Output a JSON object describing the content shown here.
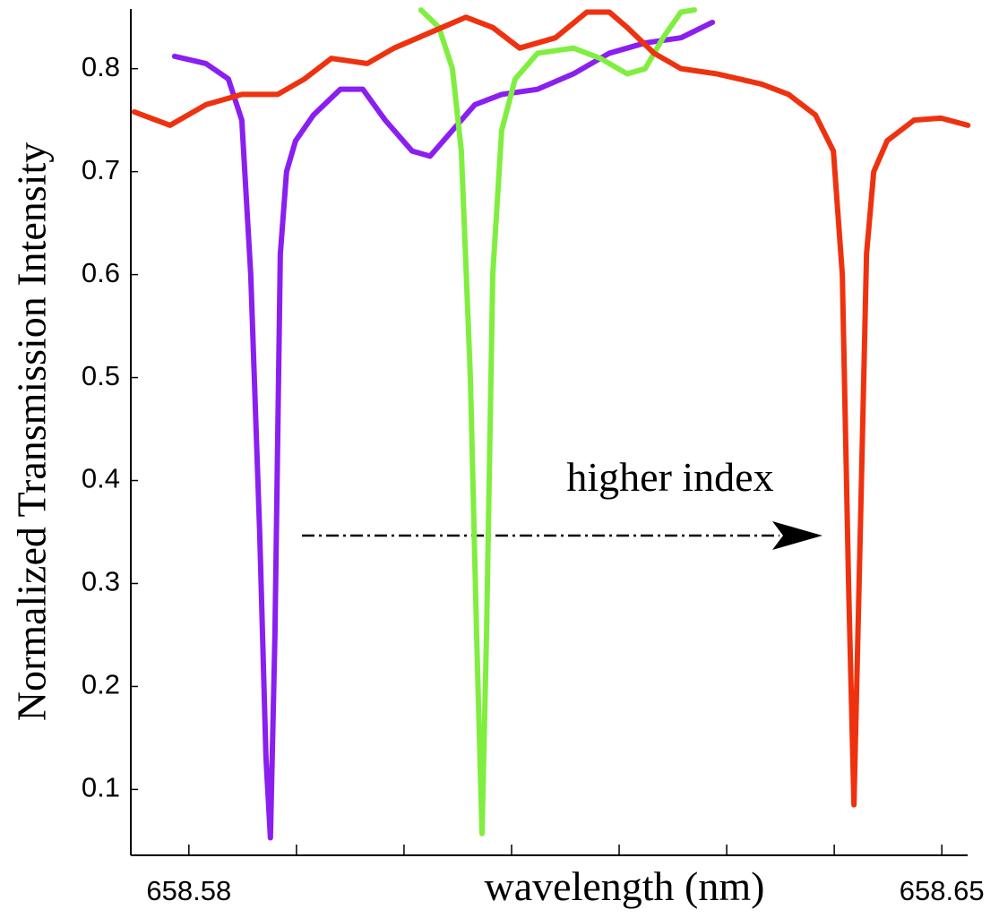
{
  "chart_data": {
    "type": "line",
    "ylabel": "Normalized Transmission Intensity",
    "xlabel": "wavelength (nm)",
    "annotation": "higher index",
    "xlim": [
      658.5746,
      658.6524
    ],
    "ylim": [
      0.036,
      0.858
    ],
    "xticks": [
      658.58,
      658.65
    ],
    "xminor_ticks": [
      658.59,
      658.6,
      658.61,
      658.62,
      658.63,
      658.64
    ],
    "yticks": [
      0.1,
      0.2,
      0.3,
      0.4,
      0.5,
      0.6,
      0.7,
      0.8
    ],
    "series": [
      {
        "color": "#8a1ff0",
        "x": [
          658.57867,
          658.58158,
          658.58367,
          658.58492,
          658.58575,
          658.58658,
          658.58717,
          658.58758,
          658.588,
          658.5885,
          658.58908,
          658.58992,
          658.59158,
          658.59408,
          658.59617,
          658.59825,
          658.60075,
          658.60242,
          658.60408,
          658.60658,
          658.60908,
          658.61242,
          658.61575,
          658.61908,
          658.62242,
          658.62575,
          658.62867
        ],
        "values": [
          0.812,
          0.805,
          0.79,
          0.75,
          0.6,
          0.35,
          0.13,
          0.053,
          0.25,
          0.62,
          0.7,
          0.73,
          0.755,
          0.78,
          0.78,
          0.75,
          0.72,
          0.715,
          0.735,
          0.765,
          0.775,
          0.78,
          0.795,
          0.815,
          0.825,
          0.83,
          0.845
        ]
      },
      {
        "color": "#80ee40",
        "x": [
          658.60158,
          658.60325,
          658.6045,
          658.60533,
          658.60617,
          658.60675,
          658.60725,
          658.60767,
          658.60825,
          658.60908,
          658.61033,
          658.61242,
          658.61575,
          658.61825,
          658.62075,
          658.62242,
          658.62408,
          658.62575,
          658.627
        ],
        "values": [
          0.857,
          0.84,
          0.8,
          0.72,
          0.5,
          0.25,
          0.057,
          0.25,
          0.6,
          0.74,
          0.79,
          0.815,
          0.82,
          0.81,
          0.795,
          0.8,
          0.83,
          0.855,
          0.857
        ]
      },
      {
        "color": "#ee3210",
        "x": [
          658.57492,
          658.57825,
          658.58158,
          658.58492,
          658.58825,
          658.59075,
          658.59325,
          658.59658,
          658.59908,
          658.60242,
          658.60575,
          658.60825,
          658.61075,
          658.61408,
          658.617,
          658.61908,
          658.62075,
          658.62325,
          658.62575,
          658.62908,
          658.63325,
          658.63575,
          658.63825,
          658.63992,
          658.64075,
          658.64133,
          658.64183,
          658.64242,
          658.643,
          658.64367,
          658.64492,
          658.64742,
          658.64992,
          658.65242
        ],
        "values": [
          0.758,
          0.745,
          0.765,
          0.775,
          0.775,
          0.79,
          0.81,
          0.805,
          0.82,
          0.835,
          0.85,
          0.84,
          0.82,
          0.83,
          0.855,
          0.855,
          0.84,
          0.815,
          0.8,
          0.795,
          0.785,
          0.775,
          0.755,
          0.72,
          0.6,
          0.3,
          0.085,
          0.35,
          0.62,
          0.7,
          0.73,
          0.75,
          0.752,
          0.745
        ]
      }
    ]
  }
}
